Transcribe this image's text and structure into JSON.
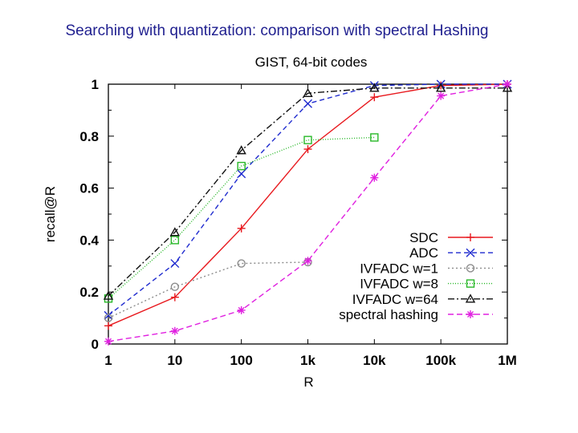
{
  "slide": {
    "title": "Searching with quantization: comparison with spectral Hashing"
  },
  "chart_data": {
    "type": "line",
    "title": "GIST, 64-bit codes",
    "xlabel": "R",
    "ylabel": "recall@R",
    "x_scale": "log",
    "categories": [
      "1",
      "10",
      "100",
      "1k",
      "10k",
      "100k",
      "1M"
    ],
    "x": [
      1,
      10,
      100,
      1000,
      10000,
      100000,
      1000000
    ],
    "ylim": [
      0,
      1
    ],
    "yticks": [
      "0",
      "0.2",
      "0.4",
      "0.6",
      "0.8",
      "1"
    ],
    "legend_position": "bottom-right",
    "series": [
      {
        "name": "SDC",
        "x": [
          1,
          10,
          100,
          1000,
          10000,
          100000,
          1000000
        ],
        "values": [
          0.07,
          0.18,
          0.445,
          0.75,
          0.95,
          0.995,
          1.0
        ],
        "color": "#e8191e",
        "marker": "plus",
        "dash": ""
      },
      {
        "name": "ADC",
        "x": [
          1,
          10,
          100,
          1000,
          10000,
          100000,
          1000000
        ],
        "values": [
          0.11,
          0.31,
          0.655,
          0.925,
          0.995,
          1.0,
          1.0
        ],
        "color": "#1f2bcf",
        "marker": "x",
        "dash": "6,4"
      },
      {
        "name": "IVFADC w=1",
        "x": [
          1,
          10,
          100,
          1000
        ],
        "values": [
          0.1,
          0.22,
          0.31,
          0.315
        ],
        "color": "#8c8c8c",
        "marker": "circle",
        "dash": "2,3"
      },
      {
        "name": "IVFADC w=8",
        "x": [
          1,
          10,
          100,
          1000,
          10000
        ],
        "values": [
          0.175,
          0.4,
          0.685,
          0.785,
          0.795
        ],
        "color": "#28b828",
        "marker": "square",
        "dash": "1,2"
      },
      {
        "name": "IVFADC w=64",
        "x": [
          1,
          10,
          100,
          1000,
          10000,
          100000,
          1000000
        ],
        "values": [
          0.185,
          0.43,
          0.745,
          0.965,
          0.985,
          0.985,
          0.985
        ],
        "color": "#111111",
        "marker": "triangle",
        "dash": "8,3,2,3"
      },
      {
        "name": "spectral hashing",
        "x": [
          1,
          10,
          100,
          1000,
          10000,
          100000,
          1000000
        ],
        "values": [
          0.01,
          0.05,
          0.13,
          0.32,
          0.64,
          0.955,
          1.0
        ],
        "color": "#e020e0",
        "marker": "star",
        "dash": "7,4"
      }
    ]
  }
}
